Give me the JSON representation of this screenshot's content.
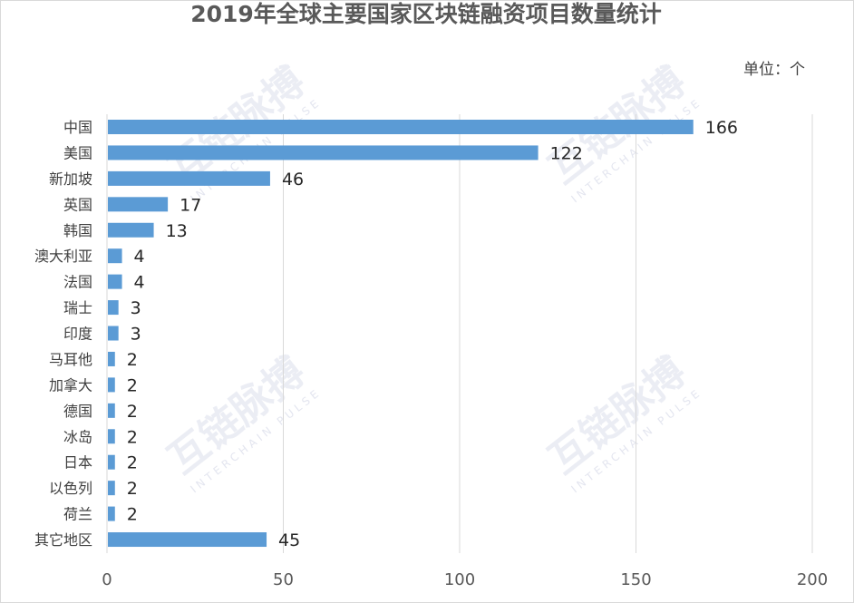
{
  "chart_data": {
    "type": "bar",
    "orientation": "horizontal",
    "title": "2019年全球主要国家区块链融资项目数量统计",
    "unit_label": "单位：个",
    "categories": [
      "中国",
      "美国",
      "新加坡",
      "英国",
      "韩国",
      "澳大利亚",
      "法国",
      "瑞士",
      "印度",
      "马耳他",
      "加拿大",
      "德国",
      "冰岛",
      "日本",
      "以色列",
      "荷兰",
      "其它地区"
    ],
    "values": [
      166,
      122,
      46,
      17,
      13,
      4,
      4,
      3,
      3,
      2,
      2,
      2,
      2,
      2,
      2,
      2,
      45
    ],
    "xlim": [
      0,
      200
    ],
    "xticks": [
      0,
      50,
      100,
      150,
      200
    ],
    "grid": true,
    "legend": "none",
    "bar_color": "#5b9bd5"
  },
  "watermark": {
    "text": "互链脉搏",
    "subtext": "INTERCHAIN PULSE"
  }
}
